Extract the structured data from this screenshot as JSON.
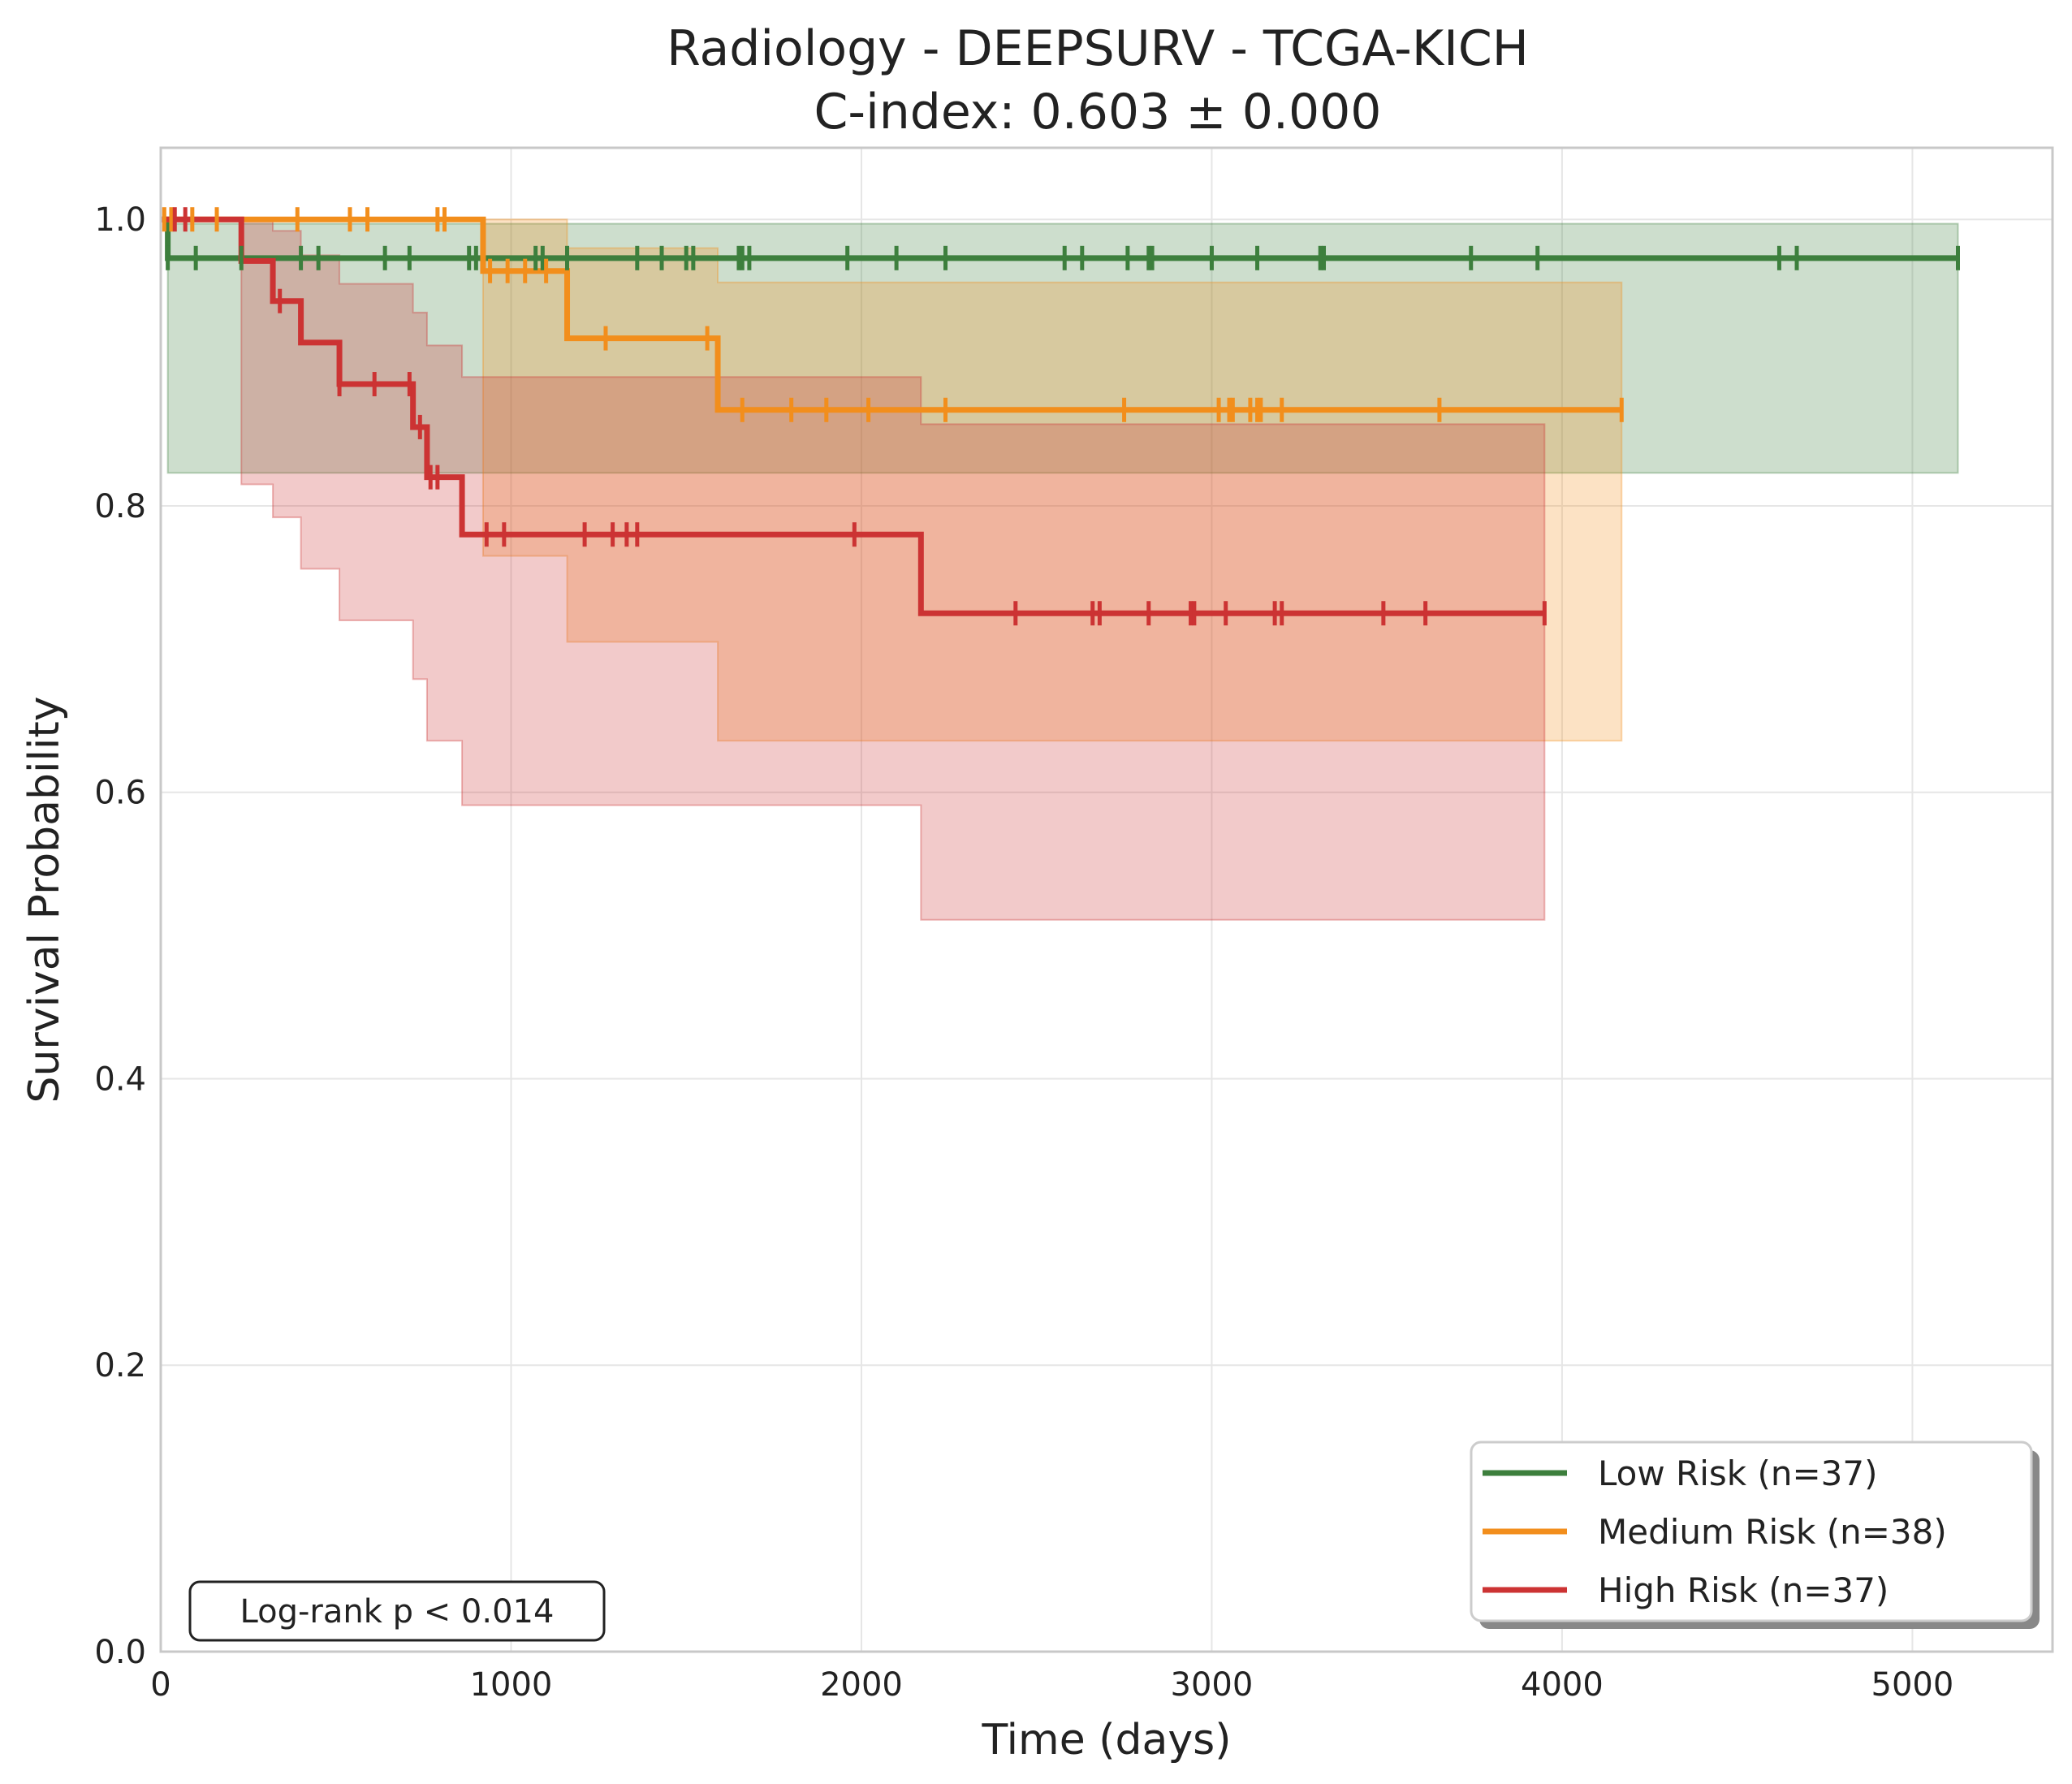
{
  "chart_data": {
    "type": "line",
    "title": "Radiology - DEEPSURV - TCGA-KICH",
    "subtitle": "C-index: 0.603 ± 0.000",
    "xlabel": "Time (days)",
    "ylabel": "Survival Probability",
    "xlim": [
      0,
      5400
    ],
    "ylim": [
      0,
      1.05
    ],
    "x_ticks": [
      0,
      1000,
      2000,
      3000,
      4000,
      5000
    ],
    "x_tick_labels": [
      "0",
      "1000",
      "2000",
      "3000",
      "4000",
      "5000"
    ],
    "y_ticks": [
      0,
      0.2,
      0.4,
      0.6,
      0.8,
      1.0
    ],
    "y_tick_labels": [
      "0.0",
      "0.2",
      "0.4",
      "0.6",
      "0.8",
      "1.0"
    ],
    "grid": true,
    "legend_position": "bottom-right",
    "annotation": "Log-rank p < 0.014",
    "series": [
      {
        "name": "Low Risk (n=37)",
        "color": "#3d7f3d",
        "steps": [
          [
            0,
            1.0
          ],
          [
            20,
            0.973
          ],
          [
            5130,
            0.973
          ]
        ],
        "ci_upper": [
          [
            20,
            0.997
          ],
          [
            5130,
            0.997
          ]
        ],
        "ci_lower": [
          [
            20,
            0.823
          ],
          [
            5130,
            0.823
          ]
        ],
        "censor_times": [
          20,
          100,
          230,
          400,
          450,
          640,
          710,
          880,
          900,
          1070,
          1090,
          1160,
          1360,
          1430,
          1500,
          1520,
          1650,
          1660,
          1680,
          1960,
          2100,
          2240,
          2580,
          2630,
          2760,
          2820,
          2830,
          3000,
          3130,
          3310,
          3320,
          3740,
          3930,
          4620,
          4670,
          5130
        ]
      },
      {
        "name": "Medium Risk (n=38)",
        "color": "#f28e1c",
        "steps": [
          [
            0,
            1.0
          ],
          [
            920,
            0.964
          ],
          [
            1160,
            0.917
          ],
          [
            1590,
            0.867
          ],
          [
            4170,
            0.867
          ]
        ],
        "ci_upper": [
          [
            0,
            1.0
          ],
          [
            920,
            1.0
          ],
          [
            1160,
            0.98
          ],
          [
            1590,
            0.956
          ],
          [
            4170,
            0.956
          ]
        ],
        "ci_lower": [
          [
            0,
            1.0
          ],
          [
            920,
            0.765
          ],
          [
            1160,
            0.705
          ],
          [
            1590,
            0.636
          ],
          [
            4170,
            0.636
          ]
        ],
        "censor_times": [
          10,
          30,
          90,
          160,
          390,
          540,
          590,
          790,
          810,
          940,
          990,
          1040,
          1100,
          1270,
          1560,
          1660,
          1800,
          1900,
          2020,
          2240,
          2750,
          3020,
          3050,
          3060,
          3110,
          3130,
          3140,
          3200,
          3650,
          4170
        ]
      },
      {
        "name": "High Risk (n=37)",
        "color": "#cc3333",
        "steps": [
          [
            0,
            1.0
          ],
          [
            230,
            0.971
          ],
          [
            320,
            0.943
          ],
          [
            400,
            0.914
          ],
          [
            510,
            0.885
          ],
          [
            720,
            0.855
          ],
          [
            760,
            0.82
          ],
          [
            860,
            0.78
          ],
          [
            2170,
            0.725
          ],
          [
            3950,
            0.725
          ]
        ],
        "ci_upper": [
          [
            230,
            0.999
          ],
          [
            320,
            0.992
          ],
          [
            400,
            0.975
          ],
          [
            510,
            0.955
          ],
          [
            720,
            0.935
          ],
          [
            760,
            0.912
          ],
          [
            860,
            0.89
          ],
          [
            2170,
            0.857
          ],
          [
            3950,
            0.857
          ]
        ],
        "ci_lower": [
          [
            230,
            0.815
          ],
          [
            320,
            0.792
          ],
          [
            400,
            0.756
          ],
          [
            510,
            0.72
          ],
          [
            720,
            0.679
          ],
          [
            760,
            0.636
          ],
          [
            860,
            0.591
          ],
          [
            2170,
            0.511
          ],
          [
            3950,
            0.511
          ]
        ],
        "censor_times": [
          40,
          70,
          340,
          510,
          610,
          710,
          740,
          770,
          790,
          930,
          980,
          1210,
          1290,
          1330,
          1360,
          1980,
          2440,
          2660,
          2680,
          2820,
          2940,
          2950,
          3040,
          3180,
          3200,
          3490,
          3610,
          3950
        ]
      }
    ]
  }
}
